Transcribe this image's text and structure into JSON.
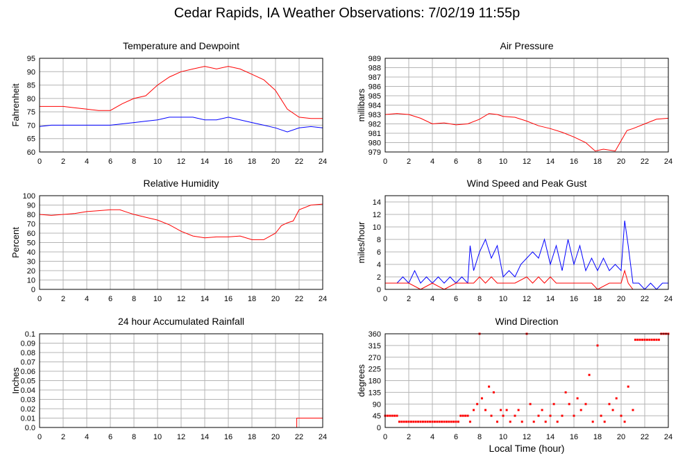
{
  "page": {
    "title": "Cedar Rapids, IA Weather Observations: 7/02/19 11:55p"
  },
  "colors": {
    "primary": "#ff0000",
    "secondary": "#0000ff",
    "grid": "#b4b4b4",
    "frame": "#000000"
  },
  "chart_data": [
    {
      "id": "temperature",
      "type": "line",
      "title": "Temperature and Dewpoint",
      "ylabel": "Fahrenheit",
      "xlabel": "",
      "xlim": [
        0,
        24
      ],
      "ylim": [
        60,
        95
      ],
      "x_ticks": [
        0,
        2,
        4,
        6,
        8,
        10,
        12,
        14,
        16,
        18,
        20,
        22,
        24
      ],
      "y_ticks": [
        "60",
        "65",
        "70",
        "75",
        "80",
        "85",
        "90",
        "95"
      ],
      "grid": true,
      "series": [
        {
          "color": "#ff0000",
          "style": "line",
          "x": [
            0,
            1,
            2,
            3,
            4,
            5,
            6,
            7,
            8,
            9,
            10,
            11,
            12,
            13,
            14,
            15,
            16,
            17,
            18,
            19,
            20,
            21,
            22,
            23,
            24
          ],
          "y": [
            77,
            77,
            77,
            76.5,
            76,
            75.5,
            75.5,
            78,
            80,
            81,
            85,
            88,
            90,
            91,
            92,
            91,
            92,
            91,
            89,
            87,
            83,
            76,
            73,
            72.5,
            72.5
          ]
        },
        {
          "color": "#0000ff",
          "style": "line",
          "x": [
            0,
            1,
            2,
            3,
            4,
            5,
            6,
            7,
            8,
            9,
            10,
            11,
            12,
            13,
            14,
            15,
            16,
            17,
            18,
            19,
            20,
            21,
            22,
            23,
            24
          ],
          "y": [
            69.5,
            70,
            70,
            70,
            70,
            70,
            70,
            70.5,
            71,
            71.5,
            72,
            73,
            73,
            73,
            72,
            72,
            73,
            72,
            71,
            70,
            69,
            67.5,
            69,
            69.5,
            69
          ]
        }
      ]
    },
    {
      "id": "pressure",
      "type": "line",
      "title": "Air Pressure",
      "ylabel": "millibars",
      "xlabel": "",
      "xlim": [
        0,
        24
      ],
      "ylim": [
        979,
        989
      ],
      "x_ticks": [
        0,
        2,
        4,
        6,
        8,
        10,
        12,
        14,
        16,
        18,
        20,
        22,
        24
      ],
      "y_ticks": [
        "979",
        "980",
        "981",
        "982",
        "983",
        "984",
        "985",
        "986",
        "987",
        "988",
        "989"
      ],
      "grid": true,
      "series": [
        {
          "color": "#ff0000",
          "style": "line",
          "x": [
            0,
            1,
            2,
            3,
            4,
            5,
            6,
            7,
            8,
            8.8,
            9.5,
            10,
            11,
            12,
            13,
            14,
            15,
            16,
            17,
            17.8,
            18.5,
            19.5,
            20,
            20.5,
            21,
            22,
            23,
            24
          ],
          "y": [
            983,
            983.1,
            983,
            982.6,
            982,
            982.1,
            981.9,
            982,
            982.5,
            983.1,
            983,
            982.8,
            982.7,
            982.3,
            981.8,
            981.5,
            981.1,
            980.6,
            980,
            979.1,
            979.3,
            979.1,
            980.2,
            981.3,
            981.5,
            982,
            982.5,
            982.6
          ]
        }
      ]
    },
    {
      "id": "humidity",
      "type": "line",
      "title": "Relative Humidity",
      "ylabel": "Percent",
      "xlabel": "",
      "xlim": [
        0,
        24
      ],
      "ylim": [
        0,
        100
      ],
      "x_ticks": [
        0,
        2,
        4,
        6,
        8,
        10,
        12,
        14,
        16,
        18,
        20,
        22,
        24
      ],
      "y_ticks": [
        "0",
        "10",
        "20",
        "30",
        "40",
        "50",
        "60",
        "70",
        "80",
        "90",
        "100"
      ],
      "grid": true,
      "series": [
        {
          "color": "#ff0000",
          "style": "line",
          "x": [
            0,
            1,
            2,
            3,
            4,
            5,
            6,
            6.8,
            7.5,
            8,
            9,
            10,
            11,
            12,
            13,
            14,
            15,
            16,
            17,
            18,
            19,
            20,
            20.5,
            21,
            21.5,
            22,
            23,
            24
          ],
          "y": [
            80,
            79,
            80,
            81,
            83,
            84,
            85,
            85,
            82,
            80,
            77,
            74,
            69,
            62,
            57,
            55,
            56,
            56,
            57,
            53,
            53,
            60,
            68,
            71,
            73,
            85,
            90,
            91
          ]
        }
      ]
    },
    {
      "id": "wind",
      "type": "line",
      "title": "Wind Speed and Peak Gust",
      "ylabel": "miles/hour",
      "xlabel": "",
      "xlim": [
        0,
        24
      ],
      "ylim": [
        0,
        15
      ],
      "x_ticks": [
        0,
        2,
        4,
        6,
        8,
        10,
        12,
        14,
        16,
        18,
        20,
        22,
        24
      ],
      "y_ticks": [
        "0",
        "2",
        "4",
        "6",
        "8",
        "10",
        "12",
        "14"
      ],
      "grid": true,
      "series": [
        {
          "color": "#0000ff",
          "style": "line",
          "x": [
            0,
            1,
            1.5,
            2,
            2.5,
            3,
            3.5,
            4,
            4.5,
            5,
            5.5,
            6,
            6.5,
            7,
            7.2,
            7.5,
            8,
            8.5,
            9,
            9.5,
            10,
            10.5,
            11,
            11.5,
            12,
            12.5,
            13,
            13.5,
            14,
            14.5,
            15,
            15.5,
            16,
            16.5,
            17,
            17.5,
            18,
            18.5,
            19,
            19.5,
            20,
            20.3,
            20.6,
            21,
            21.5,
            22,
            22.5,
            23,
            23.5,
            24
          ],
          "y": [
            1,
            1,
            2,
            1,
            3,
            1,
            2,
            1,
            2,
            1,
            2,
            1,
            2,
            1,
            7,
            3,
            6,
            8,
            5,
            7,
            2,
            3,
            2,
            4,
            5,
            6,
            5,
            8,
            4,
            7,
            3,
            8,
            4,
            7,
            3,
            5,
            3,
            5,
            3,
            4,
            3,
            11,
            7,
            1,
            1,
            0,
            1,
            0,
            1,
            1
          ]
        },
        {
          "color": "#ff0000",
          "style": "line",
          "x": [
            0,
            1,
            2,
            3,
            4,
            5,
            6,
            7,
            7.5,
            8,
            8.5,
            9,
            9.5,
            10,
            11,
            12,
            12.5,
            13,
            13.5,
            14,
            14.5,
            15,
            16,
            17,
            17.5,
            18,
            19,
            20,
            20.3,
            20.6,
            21,
            22,
            23,
            24
          ],
          "y": [
            1,
            1,
            1,
            0,
            1,
            0,
            1,
            1,
            1,
            2,
            1,
            2,
            1,
            1,
            1,
            2,
            1,
            2,
            1,
            2,
            1,
            1,
            1,
            1,
            1,
            0,
            1,
            1,
            3,
            1,
            0,
            0,
            0,
            0
          ]
        }
      ]
    },
    {
      "id": "rainfall",
      "type": "line",
      "title": "24 hour Accumulated Rainfall",
      "ylabel": "Inches",
      "xlabel": "",
      "xlim": [
        0,
        24
      ],
      "ylim": [
        0,
        0.1
      ],
      "x_ticks": [
        0,
        2,
        4,
        6,
        8,
        10,
        12,
        14,
        16,
        18,
        20,
        22,
        24
      ],
      "y_ticks": [
        "0.0",
        "0.01",
        "0.02",
        "0.03",
        "0.04",
        "0.05",
        "0.06",
        "0.07",
        "0.08",
        "0.09",
        "0.1"
      ],
      "grid": true,
      "series": [
        {
          "color": "#ff0000",
          "style": "line",
          "x": [
            0,
            21.8,
            21.8,
            24
          ],
          "y": [
            0,
            0,
            0.01,
            0.01
          ]
        }
      ]
    },
    {
      "id": "direction",
      "type": "scatter",
      "title": "Wind Direction",
      "ylabel": "degrees",
      "xlabel": "Local Time (hour)",
      "xlim": [
        0,
        24
      ],
      "ylim": [
        0,
        360
      ],
      "x_ticks": [
        0,
        2,
        4,
        6,
        8,
        10,
        12,
        14,
        16,
        18,
        20,
        22,
        24
      ],
      "y_ticks": [
        "0",
        "45",
        "90",
        "135",
        "180",
        "225",
        "270",
        "315",
        "360"
      ],
      "grid": true,
      "series": [
        {
          "color": "#ff0000",
          "style": "points",
          "x": [
            0,
            0.2,
            0.4,
            0.6,
            0.8,
            1.0,
            1.2,
            1.4,
            1.6,
            1.8,
            2.0,
            2.2,
            2.4,
            2.6,
            2.8,
            3.0,
            3.2,
            3.4,
            3.6,
            3.8,
            4.0,
            4.2,
            4.4,
            4.6,
            4.8,
            5.0,
            5.2,
            5.4,
            5.6,
            5.8,
            6.0,
            6.2,
            6.4,
            6.6,
            6.8,
            7.0,
            7.2,
            7.5,
            7.8,
            8.0,
            8.2,
            8.5,
            8.8,
            9.0,
            9.2,
            9.5,
            9.8,
            10.0,
            10.3,
            10.6,
            11.0,
            11.3,
            11.6,
            12.0,
            12.3,
            12.6,
            13.0,
            13.3,
            13.6,
            14.0,
            14.3,
            14.6,
            15.0,
            15.3,
            15.6,
            16.0,
            16.3,
            16.6,
            17.0,
            17.3,
            17.6,
            18.0,
            18.3,
            18.6,
            19.0,
            19.3,
            19.6,
            20.0,
            20.3,
            20.6,
            21.0,
            21.2,
            21.4,
            21.6,
            21.8,
            22.0,
            22.2,
            22.4,
            22.6,
            22.8,
            23.0,
            23.2,
            23.4,
            23.6,
            23.8,
            24.0
          ],
          "y": [
            45,
            45,
            45,
            45,
            45,
            45,
            22,
            22,
            22,
            22,
            22,
            22,
            22,
            22,
            22,
            22,
            22,
            22,
            22,
            22,
            22,
            22,
            22,
            22,
            22,
            22,
            22,
            22,
            22,
            22,
            22,
            22,
            45,
            45,
            45,
            45,
            22,
            67,
            90,
            360,
            112,
            67,
            157,
            45,
            135,
            22,
            67,
            45,
            67,
            22,
            45,
            67,
            22,
            360,
            90,
            22,
            45,
            67,
            22,
            45,
            90,
            22,
            45,
            135,
            90,
            45,
            112,
            67,
            90,
            202,
            22,
            315,
            45,
            22,
            90,
            67,
            112,
            45,
            22,
            157,
            67,
            337,
            337,
            337,
            337,
            337,
            337,
            337,
            337,
            337,
            337,
            337,
            360,
            360,
            360,
            360
          ]
        }
      ]
    }
  ]
}
